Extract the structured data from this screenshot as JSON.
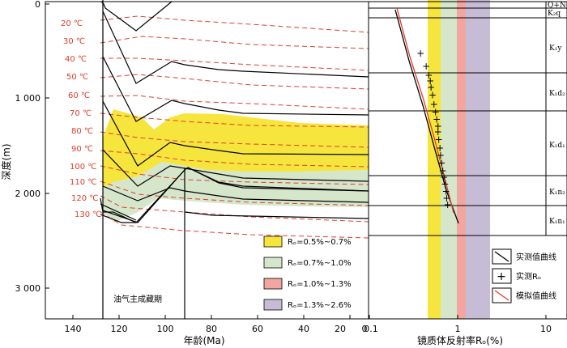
{
  "left_panel": {
    "y_axis": {
      "label": "深度(m)",
      "ticks": [
        "0",
        "1 000",
        "2 000",
        "3 000"
      ]
    },
    "x_axis": {
      "label": "年龄(Ma)",
      "ticks": [
        "140",
        "120",
        "100",
        "80",
        "60",
        "40",
        "20",
        "0"
      ]
    },
    "isotherm_labels": [
      "20 ℃",
      "30 ℃",
      "40 ℃",
      "50 ℃",
      "60 ℃",
      "70 ℃",
      "80 ℃",
      "90 ℃",
      "100 ℃",
      "110 ℃",
      "120 ℃",
      "130 ℃"
    ],
    "period_label": "油气主成藏期",
    "legend": [
      {
        "label": "Rₒ=0.5%~0.7%",
        "color": "#f6e53c"
      },
      {
        "label": "Rₒ=0.7%~1.0%",
        "color": "#d5e6cb"
      },
      {
        "label": "Rₒ=1.0%~1.3%",
        "color": "#f2a6a1"
      },
      {
        "label": "Rₒ=1.3%~2.6%",
        "color": "#c7bcd6"
      }
    ]
  },
  "right_panel": {
    "x_axis": {
      "label": "镜质体反射率Rₒ(%)",
      "ticks": [
        "0.1",
        "1",
        "10"
      ]
    },
    "strata": [
      "Q+N",
      "K₂q",
      "K₁y",
      "K₁d₂",
      "K₁d₁",
      "K₁n₂",
      "K₁n₁"
    ],
    "legend": [
      {
        "label": "实测值曲线",
        "symbol": "black-line"
      },
      {
        "label": "实测Rₒ",
        "symbol": "plus"
      },
      {
        "label": "模拟值曲线",
        "symbol": "red-line"
      }
    ]
  },
  "colors": {
    "isotherm": "#e03c2c",
    "zone_05_07": "#f6e53c",
    "zone_07_10": "#d5e6cb",
    "zone_10_13": "#f2a6a1",
    "zone_13_26": "#c7bcd6"
  },
  "chart_data": {
    "type": "scatter",
    "xlabel": "镜质体反射率Rₒ(%)",
    "ylabel": "深度(m)",
    "x_scale": "log",
    "xlim": [
      0.1,
      20
    ],
    "ylim": [
      3400,
      0
    ],
    "series": [
      {
        "name": "实测Rₒ",
        "points": [
          [
            0.38,
            520
          ],
          [
            0.44,
            660
          ],
          [
            0.47,
            750
          ],
          [
            0.49,
            810
          ],
          [
            0.5,
            880
          ],
          [
            0.52,
            960
          ],
          [
            0.54,
            1060
          ],
          [
            0.56,
            1140
          ],
          [
            0.58,
            1220
          ],
          [
            0.6,
            1290
          ],
          [
            0.6,
            1350
          ],
          [
            0.61,
            1430
          ],
          [
            0.63,
            1520
          ],
          [
            0.64,
            1600
          ],
          [
            0.66,
            1680
          ],
          [
            0.68,
            1760
          ],
          [
            0.7,
            1830
          ],
          [
            0.72,
            1900
          ],
          [
            0.74,
            1980
          ],
          [
            0.75,
            2050
          ],
          [
            0.77,
            2120
          ]
        ]
      }
    ]
  }
}
